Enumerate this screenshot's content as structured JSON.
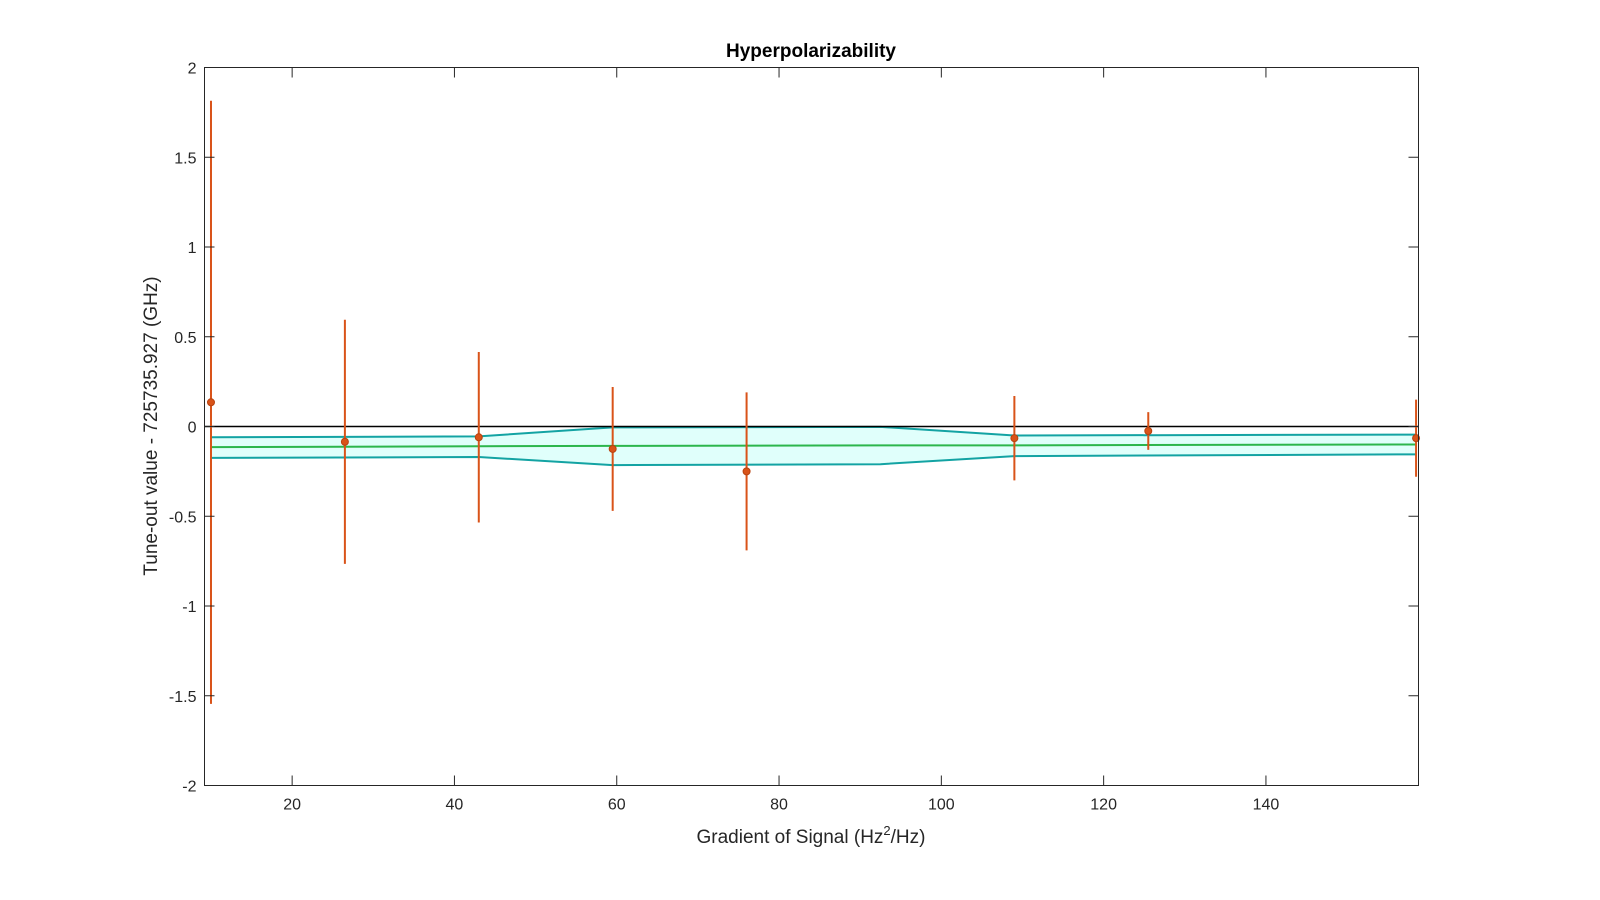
{
  "chart_data": {
    "type": "scatter",
    "title": "Hyperpolarizability",
    "xlabel_parts": [
      "Gradient of Signal (Hz",
      "2",
      "/Hz)"
    ],
    "ylabel": "Tune-out value - 725735.927 (GHz)",
    "xlim": [
      9.2,
      158.8
    ],
    "ylim": [
      -2,
      2
    ],
    "x_ticks": [
      20,
      40,
      60,
      80,
      100,
      120,
      140
    ],
    "y_ticks": [
      -2,
      -1.5,
      -1,
      -0.5,
      0,
      0.5,
      1,
      1.5,
      2
    ],
    "y_tick_labels": [
      "-2",
      "-1.5",
      "-1",
      "-0.5",
      "0",
      "0.5",
      "1",
      "1.5",
      "2"
    ],
    "grid": false,
    "zero_line": 0,
    "series": [
      {
        "type": "errorbar",
        "x": [
          10.0,
          26.5,
          43.0,
          59.5,
          76.0,
          109.0,
          125.5,
          158.5
        ],
        "y": [
          0.135,
          -0.085,
          -0.06,
          -0.125,
          -0.25,
          -0.065,
          -0.025,
          -0.065
        ],
        "err": [
          1.68,
          0.68,
          0.475,
          0.345,
          0.44,
          0.235,
          0.105,
          0.215
        ]
      },
      {
        "type": "fit",
        "x": [
          10.0,
          43.0,
          59.5,
          92.5,
          109.0,
          158.5
        ],
        "y": [
          -0.115,
          -0.11,
          -0.108,
          -0.105,
          -0.105,
          -0.1
        ]
      },
      {
        "type": "confidence-band",
        "x": [
          10.0,
          43.0,
          59.5,
          92.5,
          109.0,
          158.5
        ],
        "upper": [
          -0.06,
          -0.055,
          -0.005,
          -0.002,
          -0.05,
          -0.045
        ],
        "lower": [
          -0.175,
          -0.17,
          -0.215,
          -0.21,
          -0.165,
          -0.155
        ]
      }
    ],
    "colors": {
      "points": "#D95319",
      "fit": "#2CB64C",
      "band_edge": "#13A3A3",
      "band_fill": "#E0FFFB",
      "zero_line": "#000000",
      "axes": "#262626"
    }
  }
}
